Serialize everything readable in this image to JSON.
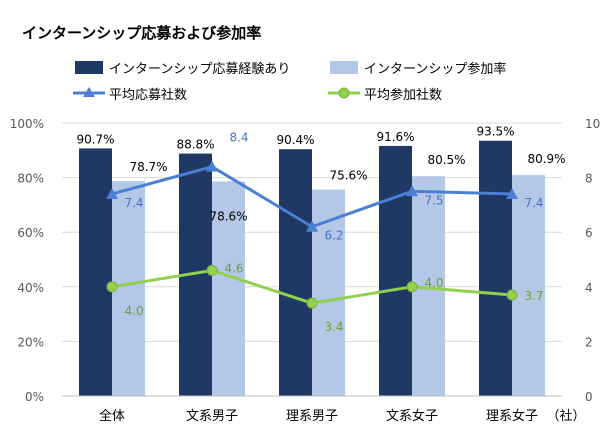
{
  "chart_data": {
    "type": "bar",
    "title": "インターンシップ応募および参加率",
    "categories": [
      "全体",
      "文系男子",
      "理系男子",
      "文系女子",
      "理系女子"
    ],
    "unit_label": "（社）",
    "y_left": {
      "ticks": [
        "0%",
        "20%",
        "40%",
        "60%",
        "80%",
        "100%"
      ],
      "ylim": [
        0,
        100
      ]
    },
    "y_right": {
      "ticks": [
        "0",
        "2",
        "4",
        "6",
        "8",
        "10"
      ],
      "ylim": [
        0,
        10
      ]
    },
    "legend_position": "top",
    "series": [
      {
        "name": "インターンシップ応募経験あり",
        "kind": "bar",
        "axis": "left",
        "color": "#1f3864",
        "values": [
          90.7,
          88.8,
          90.4,
          91.6,
          93.5
        ],
        "labels": [
          "90.7%",
          "88.8%",
          "90.4%",
          "91.6%",
          "93.5%"
        ]
      },
      {
        "name": "インターンシップ参加率",
        "kind": "bar",
        "axis": "left",
        "color": "#b4c7e7",
        "values": [
          78.7,
          78.6,
          75.6,
          80.5,
          80.9
        ],
        "labels": [
          "78.7%",
          "78.6%",
          "75.6%",
          "80.5%",
          "80.9%"
        ]
      },
      {
        "name": "平均応募社数",
        "kind": "line",
        "axis": "right",
        "color": "#4a7fd4",
        "marker": "triangle",
        "values": [
          7.4,
          8.4,
          6.2,
          7.5,
          7.4
        ],
        "labels": [
          "7.4",
          "8.4",
          "6.2",
          "7.5",
          "7.4"
        ]
      },
      {
        "name": "平均参加社数",
        "kind": "line",
        "axis": "right",
        "color": "#92d050",
        "marker": "circle",
        "values": [
          4.0,
          4.6,
          3.4,
          4.0,
          3.7
        ],
        "labels": [
          "4.0",
          "4.6",
          "3.4",
          "4.0",
          "3.7"
        ]
      }
    ]
  }
}
